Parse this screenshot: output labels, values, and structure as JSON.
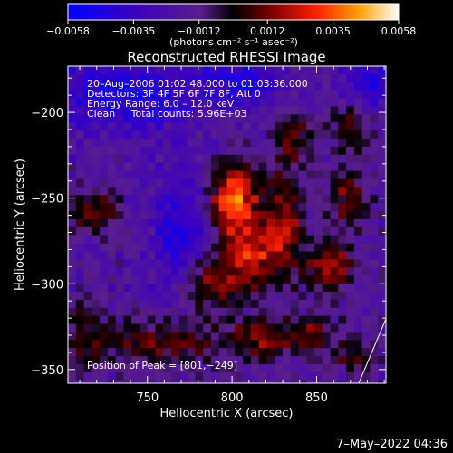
{
  "chart_data": {
    "type": "heatmap",
    "title": "Reconstructed RHESSI Image",
    "xlabel": "Heliocentric X (arcsec)",
    "ylabel": "Heliocentric Y (arcsec)",
    "xlim": [
      703,
      891
    ],
    "ylim": [
      -358,
      -173
    ],
    "x_ticks": [
      750,
      800,
      850
    ],
    "x_tick_labels": [
      "750",
      "800",
      "850"
    ],
    "y_ticks": [
      -200,
      -250,
      -300,
      -350
    ],
    "y_tick_labels": [
      "−200",
      "−250",
      "−300",
      "−350"
    ],
    "colorbar": {
      "range": [
        -0.0058,
        0.0058
      ],
      "ticks": [
        -0.0058,
        -0.0035,
        -0.0012,
        0.0012,
        0.0035,
        0.0058
      ],
      "tick_labels": [
        "−0.0058",
        "−0.0035",
        "−0.0012",
        "0.0012",
        "0.0035",
        "0.0058"
      ],
      "label": "(photons cm⁻² s⁻¹ asec⁻²)",
      "colors": [
        "#0000ff",
        "#3a00c0",
        "#5a1e8a",
        "#000000",
        "#800000",
        "#ff2000",
        "#ffa000",
        "#ffffff"
      ]
    },
    "info_lines": [
      "20–Aug–2006 01:02:48.000 to 01:03:36.000",
      "Detectors: 3F 4F 5F 6F 7F 8F, Att 0",
      "Energy Range: 6.0 – 12.0 keV",
      "Clean     Total counts: 5.96E+03"
    ],
    "peak_label": "Position of Peak = [801,−249]",
    "peak": [
      801,
      -249
    ],
    "sources": [
      {
        "x": 801,
        "y": -250,
        "amp": 0.0056,
        "sx": 10,
        "sy": 14
      },
      {
        "x": 812,
        "y": -282,
        "amp": 0.004,
        "sx": 14,
        "sy": 14
      },
      {
        "x": 786,
        "y": -300,
        "amp": 0.0034,
        "sx": 12,
        "sy": 10
      },
      {
        "x": 831,
        "y": -258,
        "amp": 0.003,
        "sx": 8,
        "sy": 22
      },
      {
        "x": 858,
        "y": -290,
        "amp": 0.0036,
        "sx": 10,
        "sy": 10
      },
      {
        "x": 868,
        "y": -250,
        "amp": 0.0026,
        "sx": 9,
        "sy": 14
      },
      {
        "x": 870,
        "y": -210,
        "amp": 0.0024,
        "sx": 8,
        "sy": 10
      },
      {
        "x": 836,
        "y": -214,
        "amp": 0.0026,
        "sx": 9,
        "sy": 9
      },
      {
        "x": 718,
        "y": -258,
        "amp": 0.003,
        "sx": 11,
        "sy": 9
      },
      {
        "x": 758,
        "y": -334,
        "amp": 0.0028,
        "sx": 28,
        "sy": 10
      },
      {
        "x": 818,
        "y": -332,
        "amp": 0.0028,
        "sx": 14,
        "sy": 9
      },
      {
        "x": 848,
        "y": -330,
        "amp": 0.0024,
        "sx": 10,
        "sy": 9
      },
      {
        "x": 874,
        "y": -344,
        "amp": 0.002,
        "sx": 10,
        "sy": 8
      },
      {
        "x": 712,
        "y": -330,
        "amp": 0.0018,
        "sx": 8,
        "sy": 16
      },
      {
        "x": 735,
        "y": -190,
        "amp": -0.003,
        "sx": 30,
        "sy": 14
      },
      {
        "x": 805,
        "y": -182,
        "amp": -0.0026,
        "sx": 18,
        "sy": 10
      },
      {
        "x": 770,
        "y": -270,
        "amp": -0.0024,
        "sx": 12,
        "sy": 28
      },
      {
        "x": 885,
        "y": -182,
        "amp": -0.0024,
        "sx": 12,
        "sy": 10
      }
    ]
  },
  "timestamp": "7–May–2022 04:36"
}
